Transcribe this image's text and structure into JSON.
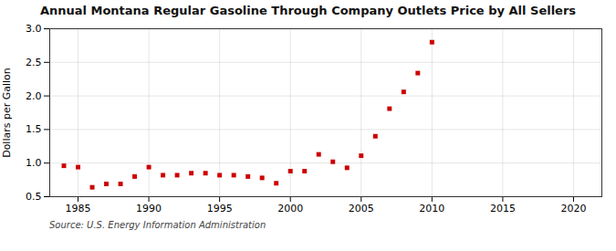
{
  "chart_data": {
    "type": "scatter",
    "title": "Annual Montana Regular Gasoline Through Company Outlets Price by All Sellers",
    "ylabel": "Dollars per Gallon",
    "source": "Source: U.S. Energy Information Administration",
    "x": [
      1984,
      1985,
      1986,
      1987,
      1988,
      1989,
      1990,
      1991,
      1992,
      1993,
      1994,
      1995,
      1996,
      1997,
      1998,
      1999,
      2000,
      2001,
      2002,
      2003,
      2004,
      2005,
      2006,
      2007,
      2008,
      2009,
      2010
    ],
    "values": [
      0.96,
      0.94,
      0.64,
      0.69,
      0.69,
      0.8,
      0.94,
      0.82,
      0.82,
      0.85,
      0.85,
      0.82,
      0.82,
      0.8,
      0.78,
      0.7,
      0.88,
      0.88,
      1.13,
      1.02,
      0.93,
      1.11,
      1.4,
      1.81,
      2.06,
      2.34,
      2.8
    ],
    "color": "#cc0000",
    "marker": "square",
    "xlim": [
      1983,
      2022
    ],
    "ylim": [
      0.5,
      3.0
    ],
    "xticks": [
      1985,
      1990,
      1995,
      2000,
      2005,
      2010,
      2015,
      2020
    ],
    "yticks": [
      0.5,
      {
        "value": 1.0,
        "label": "1.0"
      },
      1.5,
      {
        "value": 2.0,
        "label": "2.0"
      },
      2.5,
      {
        "value": 3.0,
        "label": "3.0"
      }
    ],
    "grid": true
  }
}
